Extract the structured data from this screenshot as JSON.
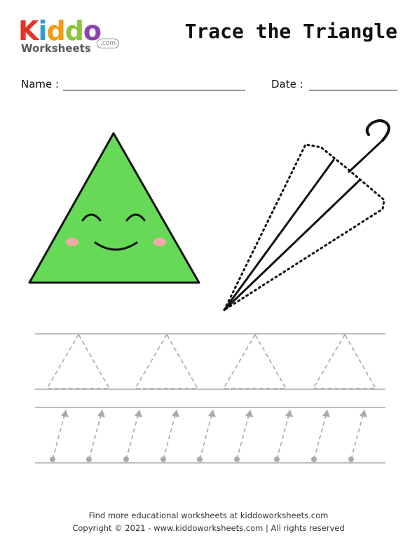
{
  "logo": {
    "word": [
      "K",
      "i",
      "d",
      "d",
      "o"
    ],
    "letter_colors": [
      "#e6332a",
      "#2e9ad6",
      "#f39c12",
      "#8cc63f",
      "#8e44ad"
    ],
    "sub": "Worksheets",
    "com": ".com"
  },
  "header": {
    "title": "Trace the Triangle"
  },
  "form": {
    "name_label": "Name :",
    "date_label": "Date :"
  },
  "colors": {
    "triangle_fill": "#66d957",
    "stroke": "#111111",
    "cheek": "#f4a9a8",
    "guide": "#aaaaaa",
    "rule": "#999999"
  },
  "footer": {
    "line1": "Find more educational worksheets at kiddoworksheets.com",
    "line2": "Copyright © 2021 - www.kiddoworksheets.com  |  All rights reserved"
  }
}
